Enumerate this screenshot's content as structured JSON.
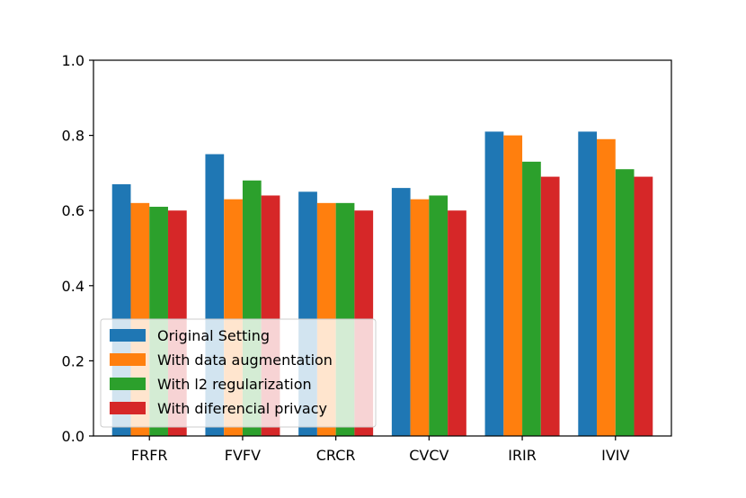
{
  "colors": {
    "background": "#ffffff",
    "axis": "#000000",
    "legend_border": "#cccccc"
  },
  "chart_data": {
    "type": "bar",
    "title": "",
    "xlabel": "",
    "ylabel": "",
    "categories": [
      "FRFR",
      "FVFV",
      "CRCR",
      "CVCV",
      "IRIR",
      "IVIV"
    ],
    "ylim": [
      0.0,
      1.0
    ],
    "yticks": [
      "0.0",
      "0.2",
      "0.4",
      "0.6",
      "0.8",
      "1.0"
    ],
    "grid": false,
    "legend_position": "lower-left",
    "series": [
      {
        "name": "Original Setting",
        "color": "#1f77b4",
        "values": [
          0.67,
          0.75,
          0.65,
          0.66,
          0.81,
          0.81
        ]
      },
      {
        "name": "With data augmentation",
        "color": "#ff7f0e",
        "values": [
          0.62,
          0.63,
          0.62,
          0.63,
          0.8,
          0.79
        ]
      },
      {
        "name": "With l2 regularization",
        "color": "#2ca02c",
        "values": [
          0.61,
          0.68,
          0.62,
          0.64,
          0.73,
          0.71
        ]
      },
      {
        "name": "With diferencial privacy",
        "color": "#d62728",
        "values": [
          0.6,
          0.64,
          0.6,
          0.6,
          0.69,
          0.69
        ]
      }
    ]
  }
}
